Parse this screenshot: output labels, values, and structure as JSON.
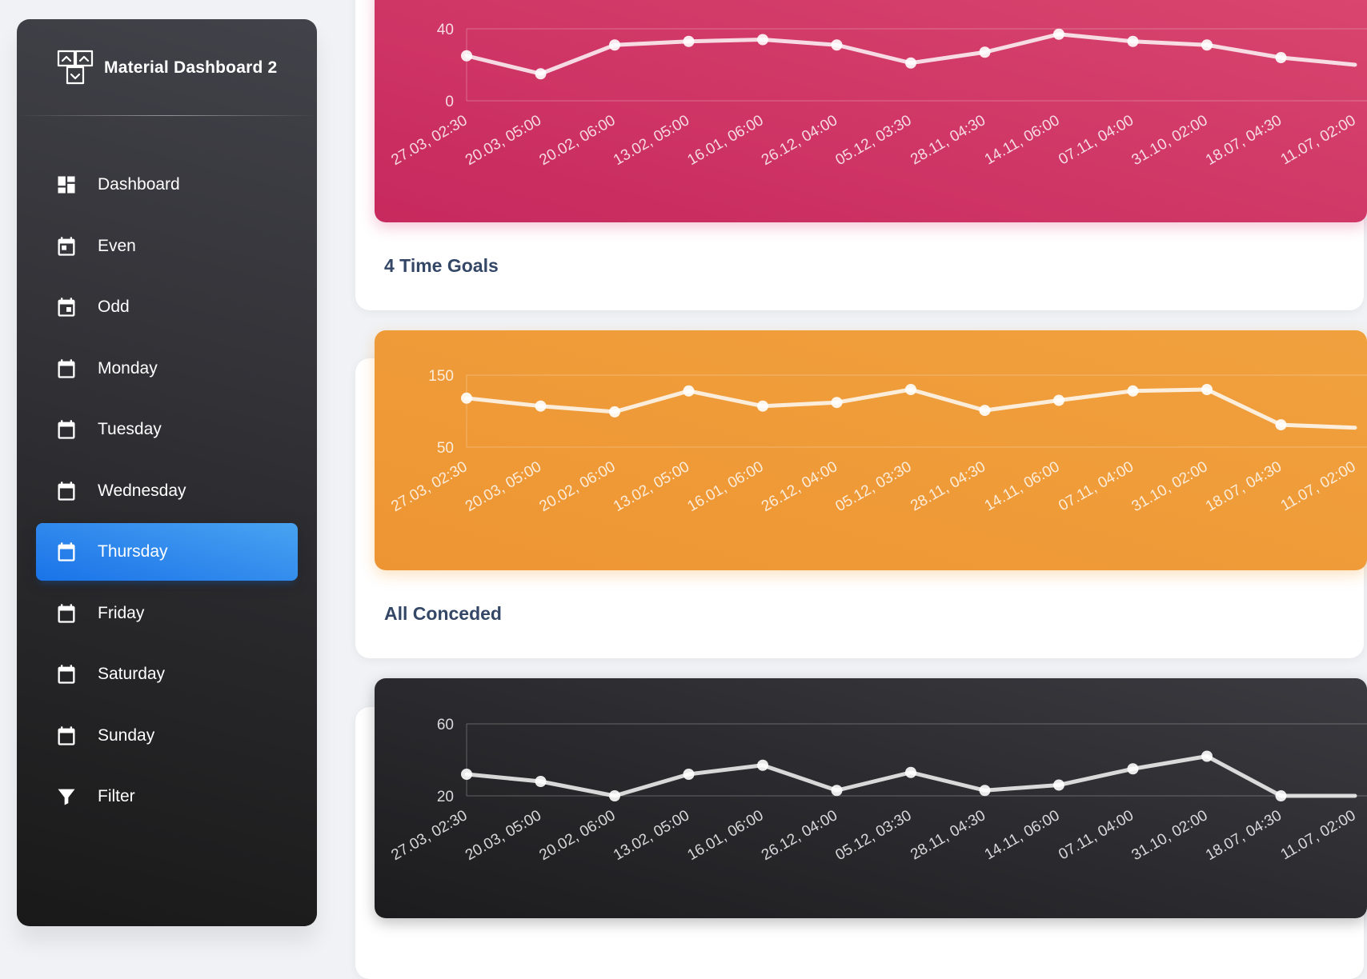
{
  "brand": {
    "name": "Material Dashboard 2",
    "icon": "calendar-board-icon"
  },
  "sidebar": {
    "items": [
      {
        "label": "Dashboard",
        "icon": "dashboard-icon",
        "active": false
      },
      {
        "label": "Even",
        "icon": "calendar-day-icon",
        "active": false
      },
      {
        "label": "Odd",
        "icon": "calendar-day-icon",
        "active": false
      },
      {
        "label": "Monday",
        "icon": "calendar-icon",
        "active": false
      },
      {
        "label": "Tuesday",
        "icon": "calendar-icon",
        "active": false
      },
      {
        "label": "Wednesday",
        "icon": "calendar-icon",
        "active": false
      },
      {
        "label": "Thursday",
        "icon": "calendar-icon",
        "active": true
      },
      {
        "label": "Friday",
        "icon": "calendar-icon",
        "active": false
      },
      {
        "label": "Saturday",
        "icon": "calendar-icon",
        "active": false
      },
      {
        "label": "Sunday",
        "icon": "calendar-icon",
        "active": false
      },
      {
        "label": "Filter",
        "icon": "filter-icon",
        "active": false
      }
    ]
  },
  "colors": {
    "accent": "#1A73E8",
    "pink": "#D81B60",
    "orange": "#FB8C00",
    "dark": "#191919"
  },
  "cards": [
    {
      "title": "4 Time Goals"
    },
    {
      "title": "All Conceded"
    },
    {
      "title": ""
    }
  ],
  "chart_data": [
    {
      "type": "line",
      "color": "pink",
      "x": [
        "27.03, 02:30",
        "20.03, 05:00",
        "20.02, 06:00",
        "13.02, 05:00",
        "16.01, 06:00",
        "26.12, 04:00",
        "05.12, 03:30",
        "28.11, 04:30",
        "14.11, 06:00",
        "07.11, 04:00",
        "31.10, 02:00",
        "18.07, 04:30",
        "11.07, 02:00"
      ],
      "values": [
        25,
        15,
        31,
        33,
        34,
        31,
        21,
        27,
        37,
        33,
        31,
        24,
        20
      ],
      "y_ticks": [
        "0",
        "40"
      ],
      "ylim": [
        0,
        40
      ],
      "grid": true
    },
    {
      "type": "line",
      "color": "orange",
      "x": [
        "27.03, 02:30",
        "20.03, 05:00",
        "20.02, 06:00",
        "13.02, 05:00",
        "16.01, 06:00",
        "26.12, 04:00",
        "05.12, 03:30",
        "28.11, 04:30",
        "14.11, 06:00",
        "07.11, 04:00",
        "31.10, 02:00",
        "18.07, 04:30",
        "11.07, 02:00"
      ],
      "values": [
        118,
        107,
        99,
        128,
        107,
        112,
        130,
        101,
        115,
        128,
        130,
        81,
        77
      ],
      "y_ticks": [
        "50",
        "150"
      ],
      "ylim": [
        50,
        150
      ],
      "grid": true
    },
    {
      "type": "line",
      "color": "dark",
      "x": [
        "27.03, 02:30",
        "20.03, 05:00",
        "20.02, 06:00",
        "13.02, 05:00",
        "16.01, 06:00",
        "26.12, 04:00",
        "05.12, 03:30",
        "28.11, 04:30",
        "14.11, 06:00",
        "07.11, 04:00",
        "31.10, 02:00",
        "18.07, 04:30",
        "11.07, 02:00"
      ],
      "values": [
        32,
        28,
        20,
        32,
        37,
        23,
        33,
        23,
        26,
        35,
        42,
        20,
        20
      ],
      "y_ticks": [
        "20",
        "60"
      ],
      "ylim": [
        20,
        60
      ],
      "grid": true
    }
  ]
}
